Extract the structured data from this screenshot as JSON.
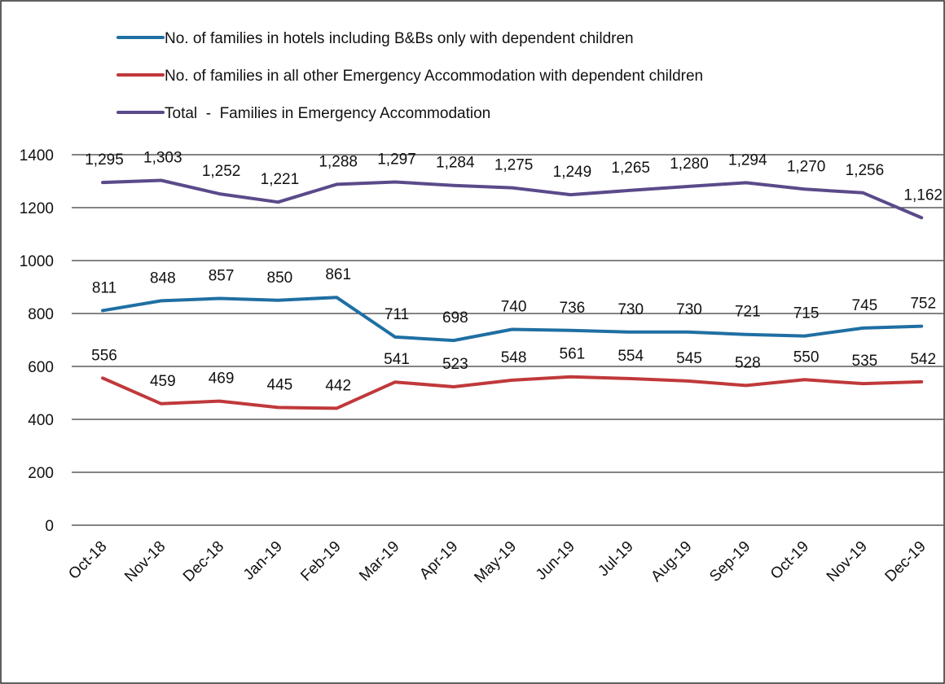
{
  "chart_data": {
    "type": "line",
    "categories": [
      "Oct-18",
      "Nov-18",
      "Dec-18",
      "Jan-19",
      "Feb-19",
      "Mar-19",
      "Apr-19",
      "May-19",
      "Jun-19",
      "Jul-19",
      "Aug-19",
      "Sep-19",
      "Oct-19",
      "Nov-19",
      "Dec-19"
    ],
    "series": [
      {
        "name": "No. of families in hotels including B&Bs only with dependent children",
        "color": "#1f6fa3",
        "values": [
          811,
          848,
          857,
          850,
          861,
          711,
          698,
          740,
          736,
          730,
          730,
          721,
          715,
          745,
          752
        ],
        "labels": [
          "811",
          "848",
          "857",
          "850",
          "861",
          "711",
          "698",
          "740",
          "736",
          "730",
          "730",
          "721",
          "715",
          "745",
          "752"
        ]
      },
      {
        "name": "No. of families in all other Emergency Accommodation with dependent children",
        "color": "#c0393b",
        "values": [
          556,
          459,
          469,
          445,
          442,
          541,
          523,
          548,
          561,
          554,
          545,
          528,
          550,
          535,
          542
        ],
        "labels": [
          "556",
          "459",
          "469",
          "445",
          "442",
          "541",
          "523",
          "548",
          "561",
          "554",
          "545",
          "528",
          "550",
          "535",
          "542"
        ]
      },
      {
        "name": "Total  -  Families in Emergency Accommodation",
        "color": "#5b4a8a",
        "values": [
          1295,
          1303,
          1252,
          1221,
          1288,
          1297,
          1284,
          1275,
          1249,
          1265,
          1280,
          1294,
          1270,
          1256,
          1162
        ],
        "labels": [
          "1,295",
          "1,303",
          "1,252",
          "1,221",
          "1,288",
          "1,297",
          "1,284",
          "1,275",
          "1,249",
          "1,265",
          "1,280",
          "1,294",
          "1,270",
          "1,256",
          "1,162"
        ]
      }
    ],
    "ylim": [
      0,
      1400
    ],
    "yticks": [
      "0",
      "200",
      "400",
      "600",
      "800",
      "1000",
      "1200",
      "1400"
    ],
    "grid": true,
    "legend_position": "top-left"
  }
}
